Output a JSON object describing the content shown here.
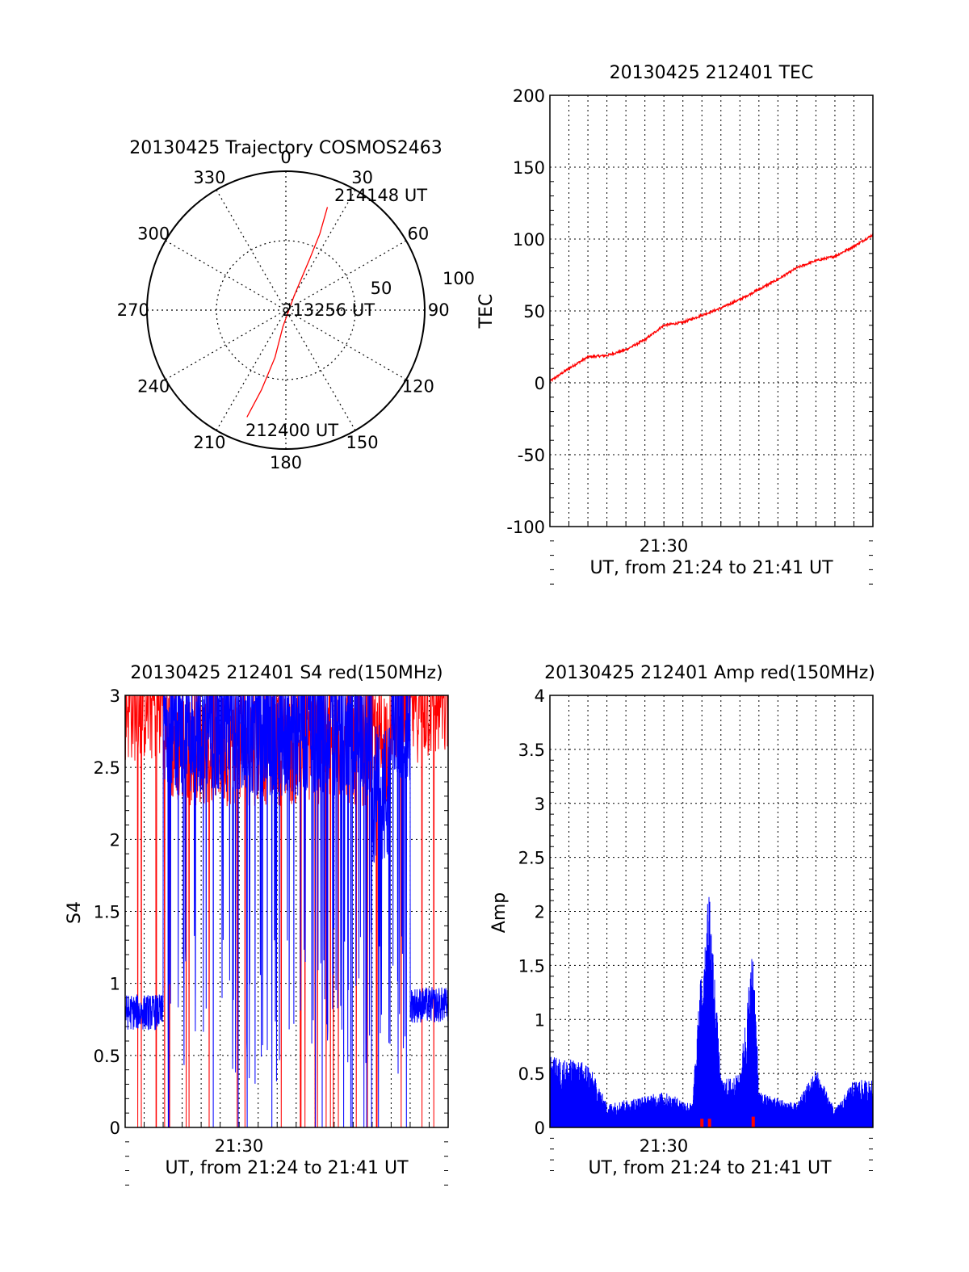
{
  "chart_data": [
    {
      "type": "polar",
      "title": "20130425 Trajectory COSMOS2463",
      "azimuth_labels": [
        "0",
        "30",
        "60",
        "90",
        "120",
        "150",
        "180",
        "210",
        "240",
        "270",
        "300",
        "330"
      ],
      "radial_labels": [
        "50",
        "100"
      ],
      "rlim": [
        0,
        100
      ],
      "grid": true,
      "series": [
        {
          "color": "#ff0000",
          "points": [
            {
              "az": 200,
              "r": 82
            },
            {
              "az": 197,
              "r": 60
            },
            {
              "az": 193,
              "r": 35
            },
            {
              "az": 190,
              "r": 12
            },
            {
              "az": 30,
              "r": 12
            },
            {
              "az": 25,
              "r": 40
            },
            {
              "az": 24,
              "r": 60
            },
            {
              "az": 22,
              "r": 80
            }
          ]
        }
      ],
      "annotations": [
        {
          "text": "214148 UT",
          "az": 22,
          "r": 80
        },
        {
          "text": "213256 UT",
          "az": 0,
          "r": 0
        },
        {
          "text": "212400 UT",
          "az": 200,
          "r": 82
        }
      ]
    },
    {
      "type": "line",
      "title": "20130425 212401 TEC",
      "xlabel": "UT, from 21:24 to 21:41 UT",
      "ylabel": "TEC",
      "x_ticks": [
        "21:30"
      ],
      "y_ticks": [
        "200",
        "150",
        "100",
        "50",
        "0",
        "-50",
        "-100"
      ],
      "xlim": [
        "21:24",
        "21:41"
      ],
      "ylim": [
        -100,
        200
      ],
      "grid": true,
      "series": [
        {
          "color": "#ff0000",
          "x": [
            "21:24",
            "21:25",
            "21:26",
            "21:27",
            "21:28",
            "21:29",
            "21:30",
            "21:31",
            "21:32",
            "21:33",
            "21:34",
            "21:35",
            "21:36",
            "21:37",
            "21:38",
            "21:39",
            "21:40",
            "21:41"
          ],
          "values": [
            1,
            10,
            18,
            19,
            23,
            30,
            40,
            42,
            47,
            52,
            58,
            65,
            72,
            80,
            85,
            88,
            95,
            103
          ]
        }
      ]
    },
    {
      "type": "line",
      "title": "20130425 212401 S4 red(150MHz)",
      "xlabel": "UT, from 21:24 to 21:41 UT",
      "ylabel": "S4",
      "x_ticks": [
        "21:30"
      ],
      "y_ticks": [
        "3",
        "2.5",
        "2",
        "1.5",
        "1",
        "0.5",
        "0"
      ],
      "xlim": [
        "21:24",
        "21:41"
      ],
      "ylim": [
        0,
        3
      ],
      "grid": true,
      "series": [
        {
          "color": "#0000ff",
          "segments": [
            {
              "x": [
                "21:24",
                "21:26"
              ],
              "level": 0.8
            },
            {
              "x": [
                "21:26",
                "21:34"
              ],
              "level": 2.7
            },
            {
              "x": [
                "21:34",
                "21:37"
              ],
              "level": 2.7
            },
            {
              "x": [
                "21:37",
                "21:38"
              ],
              "level": 2.2
            },
            {
              "x": [
                "21:38",
                "21:39"
              ],
              "level": 2.8
            },
            {
              "x": [
                "21:39",
                "21:41"
              ],
              "level": 0.85
            }
          ]
        },
        {
          "color": "#ff0000",
          "segments": [
            {
              "x": [
                "21:24",
                "21:26"
              ],
              "level": 2.8
            },
            {
              "x": [
                "21:26",
                "21:38"
              ],
              "level": 2.5
            },
            {
              "x": [
                "21:38",
                "21:41"
              ],
              "level": 2.8
            }
          ]
        }
      ]
    },
    {
      "type": "line",
      "title": "20130425 212401 Amp red(150MHz)",
      "xlabel": "UT, from 21:24 to 21:41 UT",
      "ylabel": "Amp",
      "x_ticks": [
        "21:30"
      ],
      "y_ticks": [
        "4",
        "3.5",
        "3",
        "2.5",
        "2",
        "1.5",
        "1",
        "0.5",
        "0"
      ],
      "xlim": [
        "21:24",
        "21:41"
      ],
      "ylim": [
        0,
        4
      ],
      "grid": true,
      "series": [
        {
          "color": "#0000ff",
          "x": [
            "21:24",
            "21:26",
            "21:27",
            "21:30",
            "21:31.5",
            "21:32",
            "21:32.4",
            "21:33",
            "21:34",
            "21:34.7",
            "21:35",
            "21:37",
            "21:38",
            "21:39",
            "21:40",
            "21:41"
          ],
          "values": [
            0.6,
            0.55,
            0.2,
            0.3,
            0.2,
            1.45,
            2.05,
            0.4,
            0.45,
            1.6,
            0.3,
            0.2,
            0.5,
            0.15,
            0.4,
            0.4
          ]
        },
        {
          "color": "#ff0000",
          "x": [
            "21:32",
            "21:32.4",
            "21:34.7"
          ],
          "values": [
            0.08,
            0.08,
            0.1
          ]
        }
      ]
    }
  ]
}
